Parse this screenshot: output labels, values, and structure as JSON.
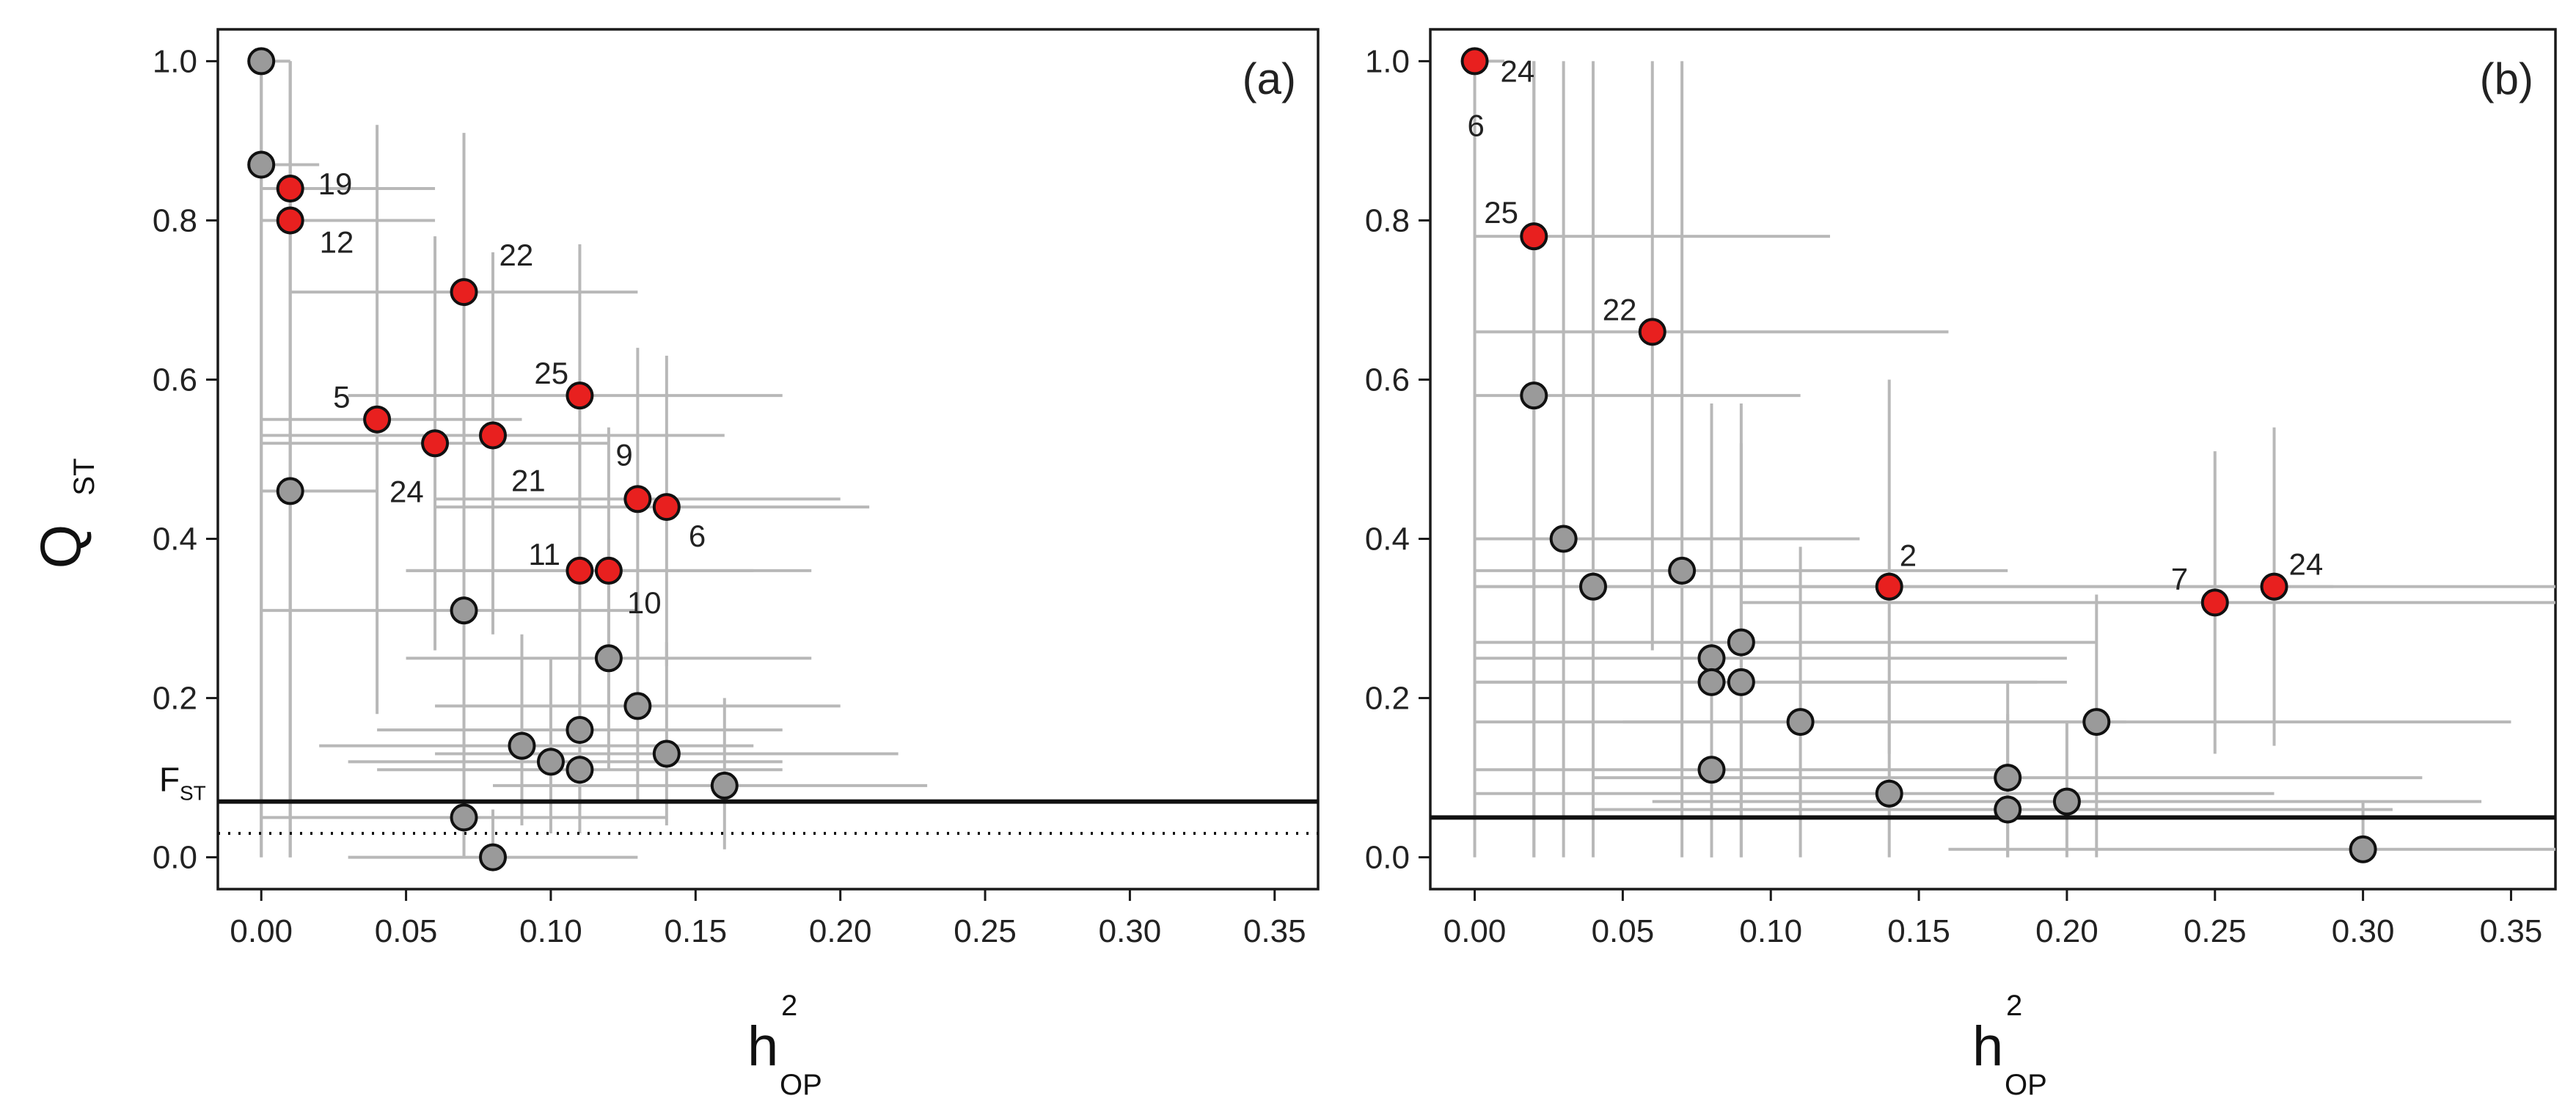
{
  "chart_data": [
    {
      "type": "scatter",
      "panel_label": "(a)",
      "xlabel": "h",
      "xlabel_sup": "2",
      "xlabel_sub": "OP",
      "ylabel": "Q",
      "ylabel_sub": "ST",
      "xlim": [
        -0.015,
        0.365
      ],
      "ylim": [
        -0.04,
        1.04
      ],
      "xticks": [
        "0.00",
        "0.05",
        "0.10",
        "0.15",
        "0.20",
        "0.25",
        "0.30",
        "0.35"
      ],
      "yticks": [
        "0.0",
        "0.2",
        "0.4",
        "0.6",
        "0.8",
        "1.0"
      ],
      "reference_lines": [
        {
          "style": "solid",
          "y": 0.07,
          "label": "F",
          "label_sub": "ST"
        },
        {
          "style": "dotted",
          "y": 0.03
        }
      ],
      "point_colors": {
        "highlighted": "#e8201f",
        "other": "#9a9a9a"
      },
      "points": [
        {
          "x": 0.0,
          "y": 1.0,
          "highlighted": false,
          "label": "",
          "x_err": [
            0.0,
            0.01
          ],
          "y_err": [
            0.0,
            1.0
          ]
        },
        {
          "x": 0.0,
          "y": 0.87,
          "highlighted": false,
          "label": "",
          "x_err": [
            0.0,
            0.02
          ],
          "y_err": [
            0.0,
            1.0
          ]
        },
        {
          "x": 0.01,
          "y": 0.84,
          "highlighted": true,
          "label": "19",
          "x_err": [
            0.0,
            0.06
          ],
          "y_err": [
            0.0,
            1.0
          ]
        },
        {
          "x": 0.01,
          "y": 0.8,
          "highlighted": true,
          "label": "12",
          "x_err": [
            0.0,
            0.06
          ],
          "y_err": [
            0.0,
            1.0
          ]
        },
        {
          "x": 0.07,
          "y": 0.71,
          "highlighted": true,
          "label": "22",
          "x_err": [
            0.01,
            0.13
          ],
          "y_err": [
            0.46,
            0.91
          ]
        },
        {
          "x": 0.04,
          "y": 0.55,
          "highlighted": true,
          "label": "5",
          "x_err": [
            0.0,
            0.09
          ],
          "y_err": [
            0.18,
            0.92
          ]
        },
        {
          "x": 0.06,
          "y": 0.52,
          "highlighted": true,
          "label": "24",
          "x_err": [
            0.0,
            0.12
          ],
          "y_err": [
            0.26,
            0.78
          ]
        },
        {
          "x": 0.08,
          "y": 0.53,
          "highlighted": true,
          "label": "21",
          "x_err": [
            0.0,
            0.16
          ],
          "y_err": [
            0.28,
            0.76
          ]
        },
        {
          "x": 0.11,
          "y": 0.58,
          "highlighted": true,
          "label": "25",
          "x_err": [
            0.03,
            0.18
          ],
          "y_err": [
            0.37,
            0.77
          ]
        },
        {
          "x": 0.13,
          "y": 0.45,
          "highlighted": true,
          "label": "9",
          "x_err": [
            0.06,
            0.2
          ],
          "y_err": [
            0.25,
            0.64
          ]
        },
        {
          "x": 0.14,
          "y": 0.44,
          "highlighted": true,
          "label": "6",
          "x_err": [
            0.06,
            0.21
          ],
          "y_err": [
            0.24,
            0.63
          ]
        },
        {
          "x": 0.11,
          "y": 0.36,
          "highlighted": true,
          "label": "11",
          "x_err": [
            0.05,
            0.17
          ],
          "y_err": [
            0.19,
            0.54
          ]
        },
        {
          "x": 0.12,
          "y": 0.36,
          "highlighted": true,
          "label": "10",
          "x_err": [
            0.05,
            0.19
          ],
          "y_err": [
            0.18,
            0.54
          ]
        },
        {
          "x": 0.01,
          "y": 0.46,
          "highlighted": false,
          "label": "",
          "x_err": [
            0.0,
            0.04
          ],
          "y_err": [
            0.0,
            1.0
          ]
        },
        {
          "x": 0.07,
          "y": 0.31,
          "highlighted": false,
          "label": "",
          "x_err": [
            0.0,
            0.13
          ],
          "y_err": [
            0.0,
            0.55
          ]
        },
        {
          "x": 0.12,
          "y": 0.25,
          "highlighted": false,
          "label": "",
          "x_err": [
            0.05,
            0.19
          ],
          "y_err": [
            0.11,
            0.4
          ]
        },
        {
          "x": 0.13,
          "y": 0.19,
          "highlighted": false,
          "label": "",
          "x_err": [
            0.06,
            0.2
          ],
          "y_err": [
            0.07,
            0.33
          ]
        },
        {
          "x": 0.11,
          "y": 0.16,
          "highlighted": false,
          "label": "",
          "x_err": [
            0.04,
            0.18
          ],
          "y_err": [
            0.06,
            0.3
          ]
        },
        {
          "x": 0.09,
          "y": 0.14,
          "highlighted": false,
          "label": "",
          "x_err": [
            0.02,
            0.17
          ],
          "y_err": [
            0.04,
            0.28
          ]
        },
        {
          "x": 0.1,
          "y": 0.12,
          "highlighted": false,
          "label": "",
          "x_err": [
            0.03,
            0.18
          ],
          "y_err": [
            0.03,
            0.25
          ]
        },
        {
          "x": 0.11,
          "y": 0.11,
          "highlighted": false,
          "label": "",
          "x_err": [
            0.04,
            0.18
          ],
          "y_err": [
            0.03,
            0.23
          ]
        },
        {
          "x": 0.14,
          "y": 0.13,
          "highlighted": false,
          "label": "",
          "x_err": [
            0.06,
            0.22
          ],
          "y_err": [
            0.04,
            0.27
          ]
        },
        {
          "x": 0.16,
          "y": 0.09,
          "highlighted": false,
          "label": "",
          "x_err": [
            0.08,
            0.23
          ],
          "y_err": [
            0.01,
            0.2
          ]
        },
        {
          "x": 0.07,
          "y": 0.05,
          "highlighted": false,
          "label": "",
          "x_err": [
            0.0,
            0.14
          ],
          "y_err": [
            0.0,
            0.15
          ]
        },
        {
          "x": 0.08,
          "y": 0.0,
          "highlighted": false,
          "label": "",
          "x_err": [
            0.03,
            0.13
          ],
          "y_err": [
            0.0,
            0.06
          ]
        }
      ]
    },
    {
      "type": "scatter",
      "panel_label": "(b)",
      "xlabel": "h",
      "xlabel_sup": "2",
      "xlabel_sub": "OP",
      "xlim": [
        -0.015,
        0.365
      ],
      "ylim": [
        -0.04,
        1.04
      ],
      "xticks": [
        "0.00",
        "0.05",
        "0.10",
        "0.15",
        "0.20",
        "0.25",
        "0.30",
        "0.35"
      ],
      "yticks": [
        "0.0",
        "0.2",
        "0.4",
        "0.6",
        "0.8",
        "1.0"
      ],
      "reference_lines": [
        {
          "style": "solid",
          "y": 0.05
        }
      ],
      "point_colors": {
        "highlighted": "#e8201f",
        "other": "#9a9a9a"
      },
      "points": [
        {
          "x": 0.0,
          "y": 1.0,
          "highlighted": true,
          "label": "24",
          "label2": "6",
          "x_err": [
            0.0,
            0.01
          ],
          "y_err": [
            0.0,
            1.0
          ]
        },
        {
          "x": 0.02,
          "y": 0.78,
          "highlighted": true,
          "label": "25",
          "x_err": [
            0.0,
            0.12
          ],
          "y_err": [
            0.0,
            1.0
          ]
        },
        {
          "x": 0.06,
          "y": 0.66,
          "highlighted": true,
          "label": "22",
          "x_err": [
            0.0,
            0.16
          ],
          "y_err": [
            0.26,
            1.0
          ]
        },
        {
          "x": 0.02,
          "y": 0.58,
          "highlighted": false,
          "label": "",
          "x_err": [
            0.0,
            0.11
          ],
          "y_err": [
            0.0,
            1.0
          ]
        },
        {
          "x": 0.14,
          "y": 0.34,
          "highlighted": true,
          "label": "2",
          "x_err": [
            0.0,
            0.29
          ],
          "y_err": [
            0.13,
            0.6
          ]
        },
        {
          "x": 0.25,
          "y": 0.32,
          "highlighted": true,
          "label": "7",
          "x_err": [
            0.09,
            0.365
          ],
          "y_err": [
            0.13,
            0.51
          ]
        },
        {
          "x": 0.27,
          "y": 0.34,
          "highlighted": true,
          "label": "24",
          "x_err": [
            0.11,
            0.365
          ],
          "y_err": [
            0.14,
            0.54
          ]
        },
        {
          "x": 0.03,
          "y": 0.4,
          "highlighted": false,
          "label": "",
          "x_err": [
            0.0,
            0.13
          ],
          "y_err": [
            0.0,
            1.0
          ]
        },
        {
          "x": 0.04,
          "y": 0.34,
          "highlighted": false,
          "label": "",
          "x_err": [
            0.0,
            0.14
          ],
          "y_err": [
            0.0,
            1.0
          ]
        },
        {
          "x": 0.07,
          "y": 0.36,
          "highlighted": false,
          "label": "",
          "x_err": [
            0.0,
            0.18
          ],
          "y_err": [
            0.0,
            1.0
          ]
        },
        {
          "x": 0.08,
          "y": 0.25,
          "highlighted": false,
          "label": "",
          "x_err": [
            0.0,
            0.2
          ],
          "y_err": [
            0.0,
            0.57
          ]
        },
        {
          "x": 0.08,
          "y": 0.22,
          "highlighted": false,
          "label": "",
          "x_err": [
            0.0,
            0.19
          ],
          "y_err": [
            0.0,
            0.54
          ]
        },
        {
          "x": 0.09,
          "y": 0.27,
          "highlighted": false,
          "label": "",
          "x_err": [
            0.0,
            0.21
          ],
          "y_err": [
            0.0,
            0.57
          ]
        },
        {
          "x": 0.09,
          "y": 0.22,
          "highlighted": false,
          "label": "",
          "x_err": [
            0.0,
            0.2
          ],
          "y_err": [
            0.0,
            0.52
          ]
        },
        {
          "x": 0.11,
          "y": 0.17,
          "highlighted": false,
          "label": "",
          "x_err": [
            0.0,
            0.22
          ],
          "y_err": [
            0.0,
            0.39
          ]
        },
        {
          "x": 0.08,
          "y": 0.11,
          "highlighted": false,
          "label": "",
          "x_err": [
            0.0,
            0.18
          ],
          "y_err": [
            0.0,
            0.38
          ]
        },
        {
          "x": 0.14,
          "y": 0.08,
          "highlighted": false,
          "label": "",
          "x_err": [
            0.0,
            0.27
          ],
          "y_err": [
            0.0,
            0.22
          ]
        },
        {
          "x": 0.18,
          "y": 0.1,
          "highlighted": false,
          "label": "",
          "x_err": [
            0.04,
            0.32
          ],
          "y_err": [
            0.0,
            0.22
          ]
        },
        {
          "x": 0.18,
          "y": 0.06,
          "highlighted": false,
          "label": "",
          "x_err": [
            0.04,
            0.31
          ],
          "y_err": [
            0.0,
            0.18
          ]
        },
        {
          "x": 0.2,
          "y": 0.07,
          "highlighted": false,
          "label": "",
          "x_err": [
            0.06,
            0.34
          ],
          "y_err": [
            0.0,
            0.17
          ]
        },
        {
          "x": 0.21,
          "y": 0.17,
          "highlighted": false,
          "label": "",
          "x_err": [
            0.05,
            0.35
          ],
          "y_err": [
            0.0,
            0.33
          ]
        },
        {
          "x": 0.3,
          "y": 0.01,
          "highlighted": false,
          "label": "",
          "x_err": [
            0.16,
            0.365
          ],
          "y_err": [
            0.0,
            0.07
          ]
        }
      ]
    }
  ]
}
